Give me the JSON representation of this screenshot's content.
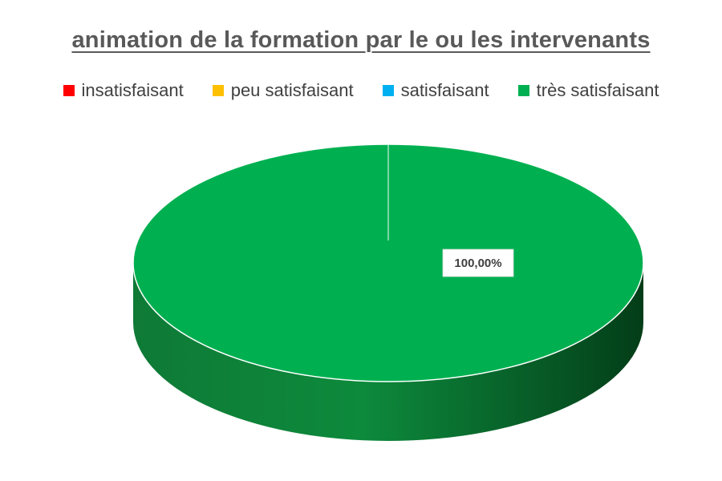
{
  "chart_data": {
    "type": "pie",
    "title": "animation de la formation par le ou les intervenants",
    "categories": [
      "insatisfaisant",
      "peu satisfaisant",
      "satisfaisant",
      "très satisfaisant"
    ],
    "values": [
      0,
      0,
      0,
      100
    ],
    "colors": [
      "#ff0000",
      "#ffc000",
      "#00b0f0",
      "#00b050"
    ],
    "data_labels": [
      "100,00%"
    ],
    "legend_position": "top",
    "style": "3d"
  }
}
